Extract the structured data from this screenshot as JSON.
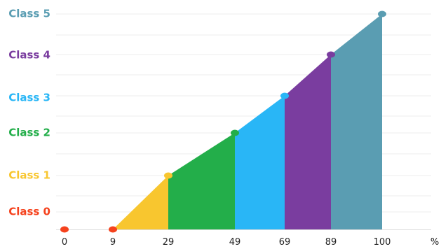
{
  "chart_data": {
    "type": "area",
    "title": "",
    "xlabel": "",
    "ylabel": "",
    "x_unit": "%",
    "x_ticks": [
      0,
      9,
      29,
      49,
      69,
      89,
      100
    ],
    "y_levels": [
      {
        "label": "Class 0",
        "color": "#f5421d"
      },
      {
        "label": "Class 1",
        "color": "#f8c62f"
      },
      {
        "label": "Class 2",
        "color": "#23ae4a"
      },
      {
        "label": "Class 3",
        "color": "#29b6f6"
      },
      {
        "label": "Class 4",
        "color": "#7a3d9f"
      },
      {
        "label": "Class 5",
        "color": "#5a9db2"
      }
    ],
    "points": [
      {
        "x": 0,
        "y": 0
      },
      {
        "x": 9,
        "y": 0
      },
      {
        "x": 29,
        "y": 1
      },
      {
        "x": 49,
        "y": 2
      },
      {
        "x": 69,
        "y": 3
      },
      {
        "x": 89,
        "y": 4
      },
      {
        "x": 100,
        "y": 5
      }
    ],
    "segments": [
      {
        "x0": 0,
        "x1": 9,
        "color": "#f5421d"
      },
      {
        "x0": 9,
        "x1": 29,
        "color": "#f8c62f"
      },
      {
        "x0": 29,
        "x1": 49,
        "color": "#23ae4a"
      },
      {
        "x0": 49,
        "x1": 69,
        "color": "#29b6f6"
      },
      {
        "x0": 69,
        "x1": 89,
        "color": "#7a3d9f"
      },
      {
        "x0": 89,
        "x1": 100,
        "color": "#5a9db2"
      }
    ],
    "grid": true,
    "legend": "none"
  }
}
